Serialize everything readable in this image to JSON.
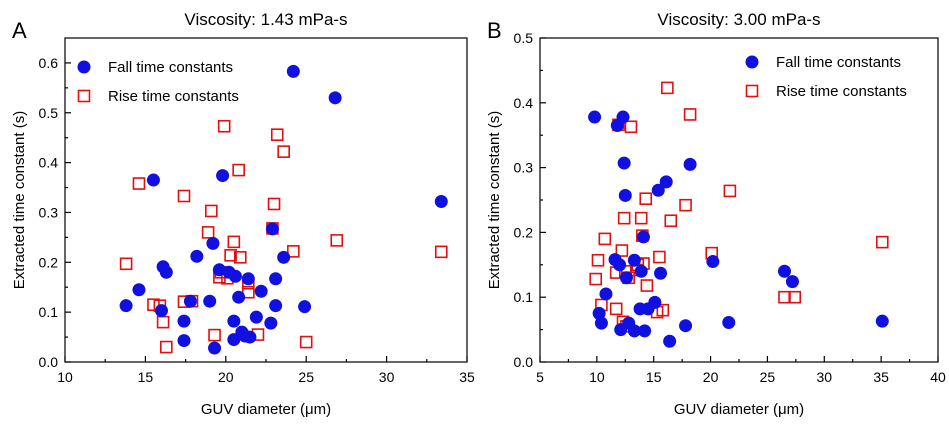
{
  "colors": {
    "fall": "#1010e0",
    "rise": "#e01010"
  },
  "chart_data": [
    {
      "type": "scatter",
      "panel": "A",
      "title": "Viscosity: 1.43 mPa-s",
      "xlabel": "GUV diameter (μm)",
      "ylabel": "Extracted time constant (s)",
      "xlim": [
        10,
        35
      ],
      "ylim": [
        0,
        0.65
      ],
      "xticks": [
        10,
        15,
        20,
        25,
        30,
        35
      ],
      "yticks": [
        0.0,
        0.1,
        0.2,
        0.3,
        0.4,
        0.5,
        0.6
      ],
      "ytick_labels": [
        "0.0",
        "0.1",
        "0.2",
        "0.3",
        "0.4",
        "0.5",
        "0.6"
      ],
      "legend_position": "top-left",
      "series": [
        {
          "name": "Fall time constants",
          "marker": "filled-circle",
          "points": [
            [
              13.8,
              0.113
            ],
            [
              14.6,
              0.145
            ],
            [
              15.5,
              0.365
            ],
            [
              16.0,
              0.103
            ],
            [
              16.1,
              0.191
            ],
            [
              16.3,
              0.18
            ],
            [
              17.4,
              0.043
            ],
            [
              17.4,
              0.082
            ],
            [
              17.8,
              0.122
            ],
            [
              18.2,
              0.212
            ],
            [
              19.0,
              0.122
            ],
            [
              19.2,
              0.238
            ],
            [
              19.3,
              0.028
            ],
            [
              19.6,
              0.185
            ],
            [
              19.8,
              0.374
            ],
            [
              20.2,
              0.18
            ],
            [
              20.5,
              0.082
            ],
            [
              20.5,
              0.045
            ],
            [
              20.6,
              0.172
            ],
            [
              20.8,
              0.13
            ],
            [
              21.0,
              0.06
            ],
            [
              21.2,
              0.052
            ],
            [
              21.4,
              0.167
            ],
            [
              21.5,
              0.05
            ],
            [
              21.9,
              0.09
            ],
            [
              22.2,
              0.142
            ],
            [
              22.8,
              0.078
            ],
            [
              22.9,
              0.267
            ],
            [
              23.1,
              0.113
            ],
            [
              23.1,
              0.167
            ],
            [
              23.6,
              0.21
            ],
            [
              24.2,
              0.583
            ],
            [
              24.9,
              0.111
            ],
            [
              26.8,
              0.53
            ],
            [
              33.4,
              0.322
            ]
          ]
        },
        {
          "name": "Rise time constants",
          "marker": "open-square",
          "points": [
            [
              13.8,
              0.197
            ],
            [
              14.6,
              0.358
            ],
            [
              15.5,
              0.115
            ],
            [
              15.9,
              0.113
            ],
            [
              16.1,
              0.08
            ],
            [
              16.3,
              0.03
            ],
            [
              17.4,
              0.333
            ],
            [
              17.4,
              0.121
            ],
            [
              17.9,
              0.122
            ],
            [
              18.9,
              0.26
            ],
            [
              19.1,
              0.303
            ],
            [
              19.3,
              0.054
            ],
            [
              19.6,
              0.17
            ],
            [
              19.7,
              0.18
            ],
            [
              19.9,
              0.473
            ],
            [
              20.1,
              0.168
            ],
            [
              20.3,
              0.214
            ],
            [
              20.5,
              0.241
            ],
            [
              20.8,
              0.385
            ],
            [
              20.9,
              0.21
            ],
            [
              21.4,
              0.158
            ],
            [
              21.4,
              0.14
            ],
            [
              22.0,
              0.055
            ],
            [
              22.9,
              0.268
            ],
            [
              23.0,
              0.317
            ],
            [
              23.2,
              0.456
            ],
            [
              23.6,
              0.422
            ],
            [
              24.2,
              0.222
            ],
            [
              25.0,
              0.04
            ],
            [
              26.9,
              0.244
            ],
            [
              33.4,
              0.221
            ]
          ]
        }
      ]
    },
    {
      "type": "scatter",
      "panel": "B",
      "title": "Viscosity: 3.00 mPa-s",
      "xlabel": "GUV diameter (μm)",
      "ylabel": "Extracted time constant (s)",
      "xlim": [
        5,
        40
      ],
      "ylim": [
        0,
        0.5
      ],
      "xticks": [
        5,
        10,
        15,
        20,
        25,
        30,
        35,
        40
      ],
      "yticks": [
        0.0,
        0.1,
        0.2,
        0.3,
        0.4,
        0.5
      ],
      "ytick_labels": [
        "0.0",
        "0.1",
        "0.2",
        "0.3",
        "0.4",
        "0.5"
      ],
      "legend_position": "top-right",
      "series": [
        {
          "name": "Fall time constants",
          "marker": "filled-circle",
          "points": [
            [
              9.8,
              0.378
            ],
            [
              10.2,
              0.075
            ],
            [
              10.4,
              0.06
            ],
            [
              10.8,
              0.105
            ],
            [
              11.6,
              0.158
            ],
            [
              11.8,
              0.365
            ],
            [
              12.0,
              0.15
            ],
            [
              12.1,
              0.05
            ],
            [
              12.3,
              0.378
            ],
            [
              12.4,
              0.307
            ],
            [
              12.5,
              0.257
            ],
            [
              12.6,
              0.13
            ],
            [
              12.8,
              0.06
            ],
            [
              13.3,
              0.157
            ],
            [
              13.3,
              0.048
            ],
            [
              13.8,
              0.082
            ],
            [
              13.9,
              0.14
            ],
            [
              14.1,
              0.193
            ],
            [
              14.2,
              0.048
            ],
            [
              14.5,
              0.082
            ],
            [
              15.1,
              0.092
            ],
            [
              15.4,
              0.265
            ],
            [
              15.6,
              0.137
            ],
            [
              16.1,
              0.278
            ],
            [
              16.4,
              0.032
            ],
            [
              17.8,
              0.056
            ],
            [
              18.2,
              0.305
            ],
            [
              20.2,
              0.155
            ],
            [
              21.6,
              0.061
            ],
            [
              26.5,
              0.14
            ],
            [
              27.2,
              0.124
            ],
            [
              35.1,
              0.063
            ]
          ]
        },
        {
          "name": "Rise time constants",
          "marker": "open-square",
          "points": [
            [
              9.9,
              0.128
            ],
            [
              10.1,
              0.157
            ],
            [
              10.4,
              0.088
            ],
            [
              10.7,
              0.19
            ],
            [
              11.7,
              0.082
            ],
            [
              11.7,
              0.138
            ],
            [
              11.9,
              0.366
            ],
            [
              12.2,
              0.172
            ],
            [
              12.3,
              0.062
            ],
            [
              12.4,
              0.222
            ],
            [
              12.5,
              0.14
            ],
            [
              12.6,
              0.055
            ],
            [
              12.8,
              0.13
            ],
            [
              13.0,
              0.363
            ],
            [
              13.5,
              0.142
            ],
            [
              13.6,
              0.15
            ],
            [
              13.9,
              0.222
            ],
            [
              14.0,
              0.195
            ],
            [
              14.1,
              0.152
            ],
            [
              14.3,
              0.252
            ],
            [
              14.4,
              0.118
            ],
            [
              15.3,
              0.077
            ],
            [
              15.5,
              0.162
            ],
            [
              15.8,
              0.08
            ],
            [
              16.2,
              0.423
            ],
            [
              16.5,
              0.218
            ],
            [
              17.8,
              0.242
            ],
            [
              18.2,
              0.382
            ],
            [
              20.1,
              0.168
            ],
            [
              21.7,
              0.264
            ],
            [
              26.5,
              0.1
            ],
            [
              27.4,
              0.1
            ],
            [
              35.1,
              0.185
            ]
          ]
        }
      ]
    }
  ]
}
